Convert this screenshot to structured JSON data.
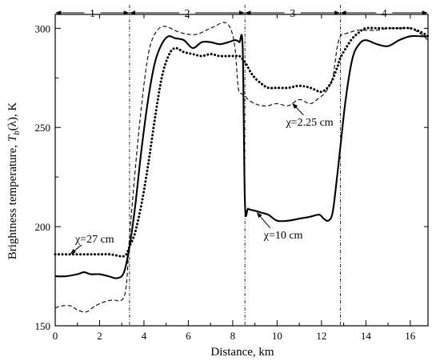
{
  "chart_data": {
    "type": "line",
    "title": "",
    "xlabel": "Distance, km",
    "ylabel": "Brightness temperature, T_b(λ), K",
    "ylabel_parts": {
      "pre": "Brightness temperature, ",
      "T": "T",
      "sub": "b",
      "post": "(λ), K"
    },
    "xlim": [
      0,
      16.8
    ],
    "ylim": [
      150,
      307
    ],
    "x_ticks": [
      0,
      2,
      4,
      6,
      8,
      10,
      12,
      14,
      16
    ],
    "x_tick_labels": [
      "0",
      "2",
      "4",
      "6",
      "8",
      "10",
      "12",
      "14",
      "16"
    ],
    "y_ticks": [
      150,
      200,
      250,
      300
    ],
    "y_tick_labels": [
      "150",
      "200",
      "250",
      "300"
    ],
    "grid": false,
    "legend": "none",
    "zones": {
      "boundaries": [
        3.35,
        8.55,
        12.85
      ],
      "labels": [
        {
          "text": "1",
          "from": 0,
          "to": 3.35
        },
        {
          "text": "2",
          "from": 3.35,
          "to": 8.55
        },
        {
          "text": "3",
          "from": 8.55,
          "to": 12.85
        },
        {
          "text": "4",
          "from": 12.85,
          "to": 16.8
        }
      ]
    },
    "series": [
      {
        "style": "solid",
        "x": [
          0,
          0.5,
          1.0,
          1.3,
          1.6,
          2.0,
          2.4,
          2.8,
          3.1,
          3.35,
          3.6,
          3.9,
          4.2,
          4.5,
          4.8,
          5.1,
          5.4,
          5.8,
          6.2,
          6.6,
          7.0,
          7.4,
          7.8,
          8.1,
          8.3,
          8.45,
          8.55,
          8.7,
          9.0,
          9.3,
          9.6,
          10.0,
          10.5,
          11.0,
          11.5,
          11.9,
          12.1,
          12.3,
          12.5,
          12.7,
          12.85,
          13.1,
          13.4,
          13.7,
          14.0,
          14.5,
          15.0,
          15.5,
          16.0,
          16.5,
          16.8
        ],
        "y": [
          175,
          175,
          176,
          177,
          176,
          176,
          175,
          174,
          177,
          190,
          210,
          240,
          265,
          283,
          292,
          296,
          295,
          294,
          290,
          293,
          293,
          292,
          293,
          294,
          293,
          290,
          212,
          209,
          208,
          207,
          206,
          203,
          203,
          204,
          205,
          206,
          204,
          203,
          207,
          225,
          240,
          265,
          285,
          292,
          294,
          292,
          291,
          294,
          296,
          296,
          296
        ]
      },
      {
        "style": "dashed",
        "x": [
          0,
          0.3,
          0.7,
          1.0,
          1.4,
          1.8,
          2.2,
          2.6,
          3.0,
          3.2,
          3.35,
          3.5,
          3.7,
          3.9,
          4.1,
          4.3,
          4.6,
          4.9,
          5.2,
          5.6,
          6.0,
          6.4,
          6.8,
          7.2,
          7.6,
          7.9,
          8.1,
          8.25,
          8.4,
          8.55,
          8.7,
          9.0,
          9.3,
          9.6,
          10.0,
          10.5,
          11.0,
          11.5,
          11.9,
          12.2,
          12.5,
          12.7,
          12.85,
          13.0,
          13.3,
          13.6,
          14.0,
          14.5,
          15.0,
          15.5,
          16.0,
          16.5,
          16.8
        ],
        "y": [
          159,
          160,
          160,
          158,
          157,
          160,
          162,
          163,
          163,
          170,
          195,
          215,
          240,
          262,
          280,
          292,
          299,
          301,
          300,
          298,
          297,
          297,
          299,
          301,
          303,
          300,
          290,
          270,
          267,
          266,
          264,
          262,
          261,
          261,
          262,
          261,
          264,
          262,
          265,
          268,
          275,
          290,
          296,
          297,
          298,
          299,
          299,
          299,
          300,
          300,
          300,
          297,
          294
        ]
      },
      {
        "style": "dotted",
        "x": [
          0,
          0.5,
          1.0,
          1.5,
          2.0,
          2.5,
          3.0,
          3.2,
          3.35,
          3.6,
          3.9,
          4.2,
          4.5,
          4.8,
          5.1,
          5.4,
          5.8,
          6.2,
          6.6,
          7.0,
          7.4,
          7.8,
          8.1,
          8.3,
          8.55,
          8.8,
          9.0,
          9.3,
          9.6,
          10.0,
          10.5,
          11.0,
          11.5,
          12.0,
          12.4,
          12.7,
          12.85,
          13.1,
          13.4,
          13.7,
          14.0,
          14.5,
          15.0,
          15.5,
          16.0,
          16.5,
          16.8
        ],
        "y": [
          186,
          186,
          186,
          186,
          186,
          186,
          185,
          186,
          190,
          197,
          212,
          232,
          255,
          275,
          286,
          290,
          288,
          287,
          286,
          287,
          286,
          286,
          286,
          286,
          283,
          278,
          275,
          272,
          270,
          270,
          270,
          271,
          270,
          268,
          272,
          280,
          285,
          290,
          295,
          298,
          300,
          300,
          300,
          300,
          300,
          298,
          296
        ]
      }
    ],
    "annotations": [
      {
        "text": "χ=27 cm",
        "x": 0.9,
        "y": 192,
        "arrow_to": [
          0.7,
          186.3
        ]
      },
      {
        "text": "χ=2.25 cm",
        "x": 10.4,
        "y": 251,
        "arrow_to": [
          10.7,
          262
        ]
      },
      {
        "text": "χ=10 cm",
        "x": 9.4,
        "y": 194,
        "arrow_to": [
          9.1,
          207
        ]
      }
    ]
  }
}
